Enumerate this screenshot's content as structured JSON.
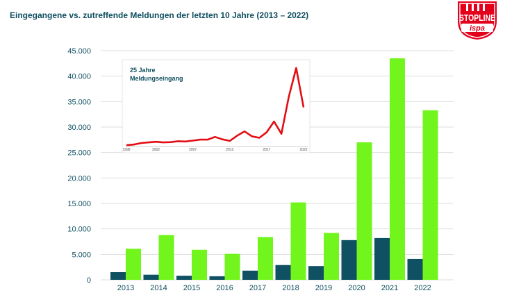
{
  "title": "Eingegangene vs. zutreffende Meldungen der letzten 10 Jahre (2013 – 2022)",
  "logo": {
    "text_top": "STOPLINE",
    "text_bottom": "ispa",
    "colors": {
      "red": "#e3001b",
      "white": "#ffffff"
    }
  },
  "colors": {
    "received": "#72f51c",
    "valid": "#0f5063",
    "grid": "#dddddd",
    "axis_text": "#0f4f60",
    "line": "#e30d13"
  },
  "chart_data": [
    {
      "type": "bar",
      "categories": [
        "2013",
        "2014",
        "2015",
        "2016",
        "2017",
        "2018",
        "2019",
        "2020",
        "2021",
        "2022"
      ],
      "series": [
        {
          "values": [
            1500,
            1000,
            800,
            700,
            1800,
            2900,
            2700,
            7800,
            8200,
            4100
          ]
        },
        {
          "values": [
            6100,
            8800,
            5900,
            5100,
            8400,
            15200,
            9200,
            27000,
            43500,
            33300
          ]
        }
      ],
      "ylim": [
        0,
        45000
      ],
      "yticks": [
        0,
        5000,
        10000,
        15000,
        20000,
        25000,
        30000,
        35000,
        40000,
        45000
      ],
      "ytick_labels": [
        "0",
        "5.000",
        "10.000",
        "15.000",
        "20.000",
        "25.000",
        "30.000",
        "35.000",
        "40.000",
        "45.000"
      ],
      "grid": true
    },
    {
      "type": "line",
      "label": [
        "25 Jahre",
        "Meldungseingang"
      ],
      "x": [
        1998,
        1999,
        2000,
        2001,
        2002,
        2003,
        2004,
        2005,
        2006,
        2007,
        2008,
        2009,
        2010,
        2011,
        2012,
        2013,
        2014,
        2015,
        2016,
        2017,
        2018,
        2019,
        2020,
        2021,
        2022
      ],
      "y": [
        200,
        400,
        900,
        1100,
        1300,
        1100,
        1200,
        1500,
        1400,
        1700,
        2000,
        2000,
        2900,
        2100,
        1600,
        3300,
        4700,
        3100,
        2600,
        4400,
        7900,
        3900,
        16000,
        25300,
        12500
      ],
      "ylim": [
        0,
        28000
      ],
      "xticks": [
        1998,
        2002,
        2007,
        2012,
        2017,
        2022
      ],
      "xtick_labels": [
        "1998",
        "2002",
        "2007",
        "2012",
        "2017",
        "2022"
      ]
    }
  ]
}
